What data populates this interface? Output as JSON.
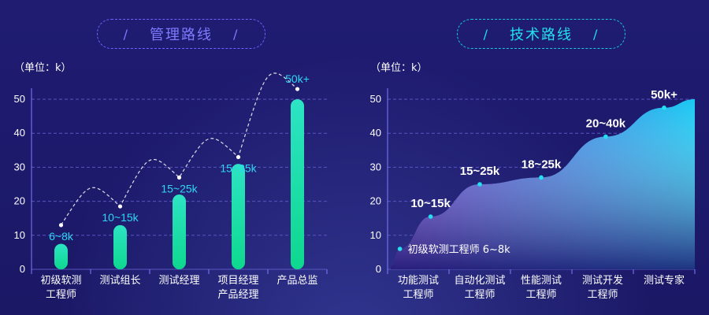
{
  "left_title": "管理路线",
  "right_title": "技术路线",
  "left_unit": "（单位：k）",
  "right_unit": "（单位：k）",
  "chart_data": [
    {
      "type": "bar",
      "title": "管理路线",
      "ylabel": "（单位：k）",
      "ylim": [
        0,
        55
      ],
      "yticks": [
        0,
        10,
        20,
        30,
        40,
        50
      ],
      "categories": [
        [
          "初级软测",
          "工程师"
        ],
        [
          "测试组长"
        ],
        [
          "测试经理"
        ],
        [
          "项目经理",
          "产品经理"
        ],
        [
          "产品总监"
        ]
      ],
      "values": [
        7.5,
        13,
        22,
        31,
        50
      ],
      "point_values": [
        13,
        18.5,
        27,
        33,
        53
      ],
      "labels": [
        "6~8k",
        "10~15k",
        "15~25k",
        "15~35k",
        "50k+"
      ],
      "label_color": "#2ed6f2",
      "bar_colors": [
        "#2de3c4",
        "#0ed88e"
      ],
      "grid": true
    },
    {
      "type": "area",
      "title": "技术路线",
      "ylabel": "（单位：k）",
      "ylim": [
        0,
        55
      ],
      "yticks": [
        0,
        10,
        20,
        30,
        40,
        50
      ],
      "categories": [
        [
          "功能测试",
          "工程师"
        ],
        [
          "自动化测试",
          "工程师"
        ],
        [
          "性能测试",
          "工程师"
        ],
        [
          "测试开发",
          "工程师"
        ],
        [
          "测试专家"
        ]
      ],
      "points": [
        {
          "x": 0.2,
          "y": 6,
          "label": "初级软测工程师  6~8k"
        },
        {
          "x": 0.7,
          "y": 15.5,
          "label": "10~15k"
        },
        {
          "x": 1.5,
          "y": 25,
          "label": "15~25k"
        },
        {
          "x": 2.5,
          "y": 27,
          "label": "18~25k"
        },
        {
          "x": 3.55,
          "y": 39,
          "label": "20~40k"
        },
        {
          "x": 4.5,
          "y": 47.5,
          "label": "50k+"
        }
      ],
      "area_colors": [
        "#6a2fd0",
        "#19c8f2"
      ],
      "grid": true
    }
  ]
}
